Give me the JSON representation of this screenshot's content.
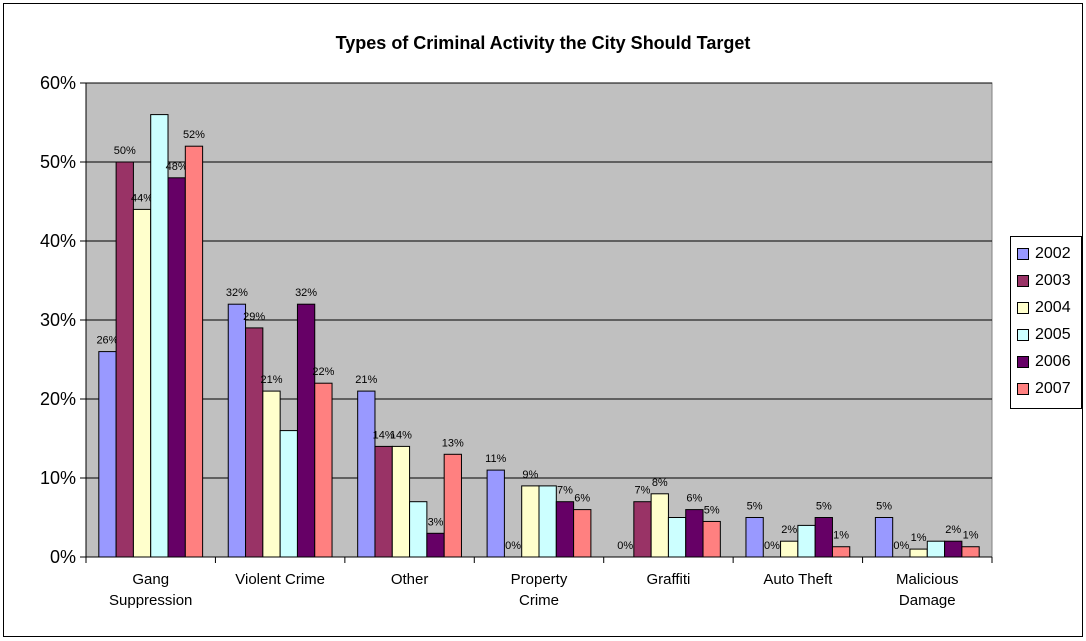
{
  "chart_data": {
    "type": "bar",
    "title": "Types of Criminal Activity the City Should Target",
    "categories": [
      [
        "Gang",
        "Suppression"
      ],
      [
        "Violent Crime"
      ],
      [
        "Other"
      ],
      [
        "Property",
        "Crime"
      ],
      [
        "Graffiti"
      ],
      [
        "Auto Theft"
      ],
      [
        "Malicious",
        "Damage"
      ]
    ],
    "ylim": [
      0,
      60
    ],
    "yticks": [
      "0%",
      "10%",
      "20%",
      "30%",
      "40%",
      "50%",
      "60%"
    ],
    "grid": true,
    "legend_position": "right",
    "series": [
      {
        "name": "2002",
        "color": "#9999ff",
        "values": [
          26,
          32,
          21,
          11,
          0,
          5,
          5
        ],
        "labels": [
          "26%",
          "32%",
          "21%",
          "11%",
          "0%",
          "5%",
          "5%"
        ]
      },
      {
        "name": "2003",
        "color": "#993366",
        "values": [
          50,
          29,
          14,
          0,
          7,
          0,
          0
        ],
        "labels": [
          "50%",
          "29%",
          "14%",
          "0%",
          "7%",
          "0%",
          "0%"
        ]
      },
      {
        "name": "2004",
        "color": "#ffffcc",
        "values": [
          44,
          21,
          14,
          9,
          8,
          2,
          1
        ],
        "labels": [
          "44%",
          "21%",
          "14%",
          "9%",
          "8%",
          "2%",
          "1%"
        ]
      },
      {
        "name": "2005",
        "color": "#ccffff",
        "values": [
          56,
          16,
          7,
          9,
          5,
          4,
          2
        ],
        "labels": [
          "",
          "",
          "",
          "",
          "",
          "",
          ""
        ]
      },
      {
        "name": "2006",
        "color": "#660066",
        "values": [
          48,
          32,
          3,
          7,
          6,
          5,
          2
        ],
        "labels": [
          "48%",
          "32%",
          "3%",
          "7%",
          "6%",
          "5%",
          "2%"
        ]
      },
      {
        "name": "2007",
        "color": "#ff8080",
        "values": [
          52,
          22,
          13,
          6,
          4.5,
          1.3,
          1.3
        ],
        "labels": [
          "52%",
          "22%",
          "13%",
          "6%",
          "5%",
          "1%",
          "1%"
        ]
      }
    ]
  }
}
